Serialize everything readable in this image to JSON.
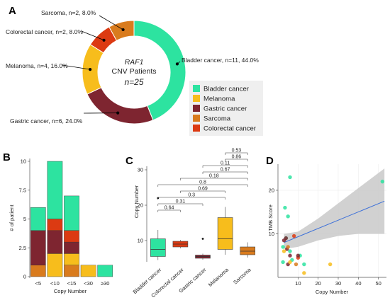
{
  "panels": {
    "a": "A",
    "b": "B",
    "c": "C",
    "d": "D"
  },
  "colors": {
    "bladder": "#2de3a0",
    "melanoma": "#f7bd1c",
    "gastric": "#7e2530",
    "sarcoma": "#d97b1d",
    "colorectal": "#dc3a12",
    "fit_line": "#3b6fd8",
    "ci_band": "#c9c9c9"
  },
  "chart_data": [
    {
      "type": "pie",
      "panel": "A",
      "center_label": {
        "gene": "RAF1",
        "line2": "CNV Patients",
        "total": "n=25"
      },
      "slices": [
        {
          "name": "Bladder cancer",
          "n": 11,
          "percent": 44.0,
          "label": "Bladder cancer, n=11, 44.0%",
          "color": "#2de3a0"
        },
        {
          "name": "Gastric cancer",
          "n": 6,
          "percent": 24.0,
          "label": "Gastric cancer, n=6, 24.0%",
          "color": "#7e2530"
        },
        {
          "name": "Melanoma",
          "n": 4,
          "percent": 16.0,
          "label": "Melanoma, n=4, 16.0%",
          "color": "#f7bd1c"
        },
        {
          "name": "Colorectal cancer",
          "n": 2,
          "percent": 8.0,
          "label": "Colorectal cancer, n=2, 8.0%",
          "color": "#dc3a12"
        },
        {
          "name": "Sarcoma",
          "n": 2,
          "percent": 8.0,
          "label": "Sarcoma, n=2, 8.0%",
          "color": "#d97b1d"
        }
      ],
      "legend": [
        "Bladder cancer",
        "Melanoma",
        "Gastric cancer",
        "Sarcoma",
        "Colorectal cancer"
      ],
      "legend_placement": "right"
    },
    {
      "type": "bar",
      "panel": "B",
      "stacked": true,
      "categories": [
        "<5",
        "<10",
        "<15",
        "<30",
        "≥30"
      ],
      "xlabel": "Copy Number",
      "ylabel": "# of patient",
      "ylim": [
        0,
        10
      ],
      "yticks": [
        0,
        2.5,
        5,
        7.5,
        10
      ],
      "ytick_labels": [
        "0",
        "2.5",
        "5",
        "7.5",
        "10"
      ],
      "series": [
        {
          "name": "Sarcoma",
          "values": [
            1,
            0,
            1,
            0,
            0
          ],
          "color": "#d97b1d"
        },
        {
          "name": "Melanoma",
          "values": [
            0,
            2,
            1,
            1,
            0
          ],
          "color": "#f7bd1c"
        },
        {
          "name": "Gastric cancer",
          "values": [
            3,
            2,
            1,
            0,
            0
          ],
          "color": "#7e2530"
        },
        {
          "name": "Colorectal cancer",
          "values": [
            0,
            1,
            1,
            0,
            0
          ],
          "color": "#dc3a12"
        },
        {
          "name": "Bladder cancer",
          "values": [
            2,
            5,
            3,
            0,
            1
          ],
          "color": "#2de3a0"
        }
      ]
    },
    {
      "type": "box",
      "panel": "C",
      "ylabel": "Copy Number",
      "ylim": [
        3,
        33
      ],
      "yticks": [
        10,
        20,
        30
      ],
      "categories": [
        "Bladder cancer",
        "Colorectal cancer",
        "Gastric cancer",
        "Melanoma",
        "Sarcoma"
      ],
      "boxes": [
        {
          "name": "Bladder cancer",
          "color": "#2de3a0",
          "whisker_low": 4.5,
          "q1": 5.5,
          "median": 7.5,
          "q3": 10.5,
          "whisker_high": 13,
          "outliers": [
            22
          ]
        },
        {
          "name": "Colorectal cancer",
          "color": "#dc3a12",
          "whisker_low": 7.8,
          "q1": 8.2,
          "median": 9,
          "q3": 9.8,
          "whisker_high": 10.2,
          "outliers": []
        },
        {
          "name": "Gastric cancer",
          "color": "#7e2530",
          "whisker_low": 4.6,
          "q1": 5,
          "median": 5.5,
          "q3": 5.9,
          "whisker_high": 6.3,
          "outliers": [
            10.5
          ]
        },
        {
          "name": "Melanoma",
          "color": "#f7bd1c",
          "whisker_low": 6,
          "q1": 7.5,
          "median": 10.5,
          "q3": 16.5,
          "whisker_high": 19.5,
          "outliers": []
        },
        {
          "name": "Sarcoma",
          "color": "#d97b1d",
          "whisker_low": 5.2,
          "q1": 6,
          "median": 7,
          "q3": 8.2,
          "whisker_high": 9.5,
          "outliers": []
        }
      ],
      "comparisons": [
        {
          "from": 0,
          "to": 1,
          "p": "0.64"
        },
        {
          "from": 0,
          "to": 2,
          "p": "0.31"
        },
        {
          "from": 0,
          "to": 3,
          "p": "0.3"
        },
        {
          "from": 1,
          "to": 3,
          "p": "0.69"
        },
        {
          "from": 0,
          "to": 4,
          "p": "0.8"
        },
        {
          "from": 1,
          "to": 4,
          "p": "0.18"
        },
        {
          "from": 2,
          "to": 4,
          "p": "0.67"
        },
        {
          "from": 2,
          "to": 4,
          "p": "0.11"
        },
        {
          "from": 3,
          "to": 4,
          "p": "0.86"
        },
        {
          "from": 3,
          "to": 4,
          "p": "0.53"
        }
      ]
    },
    {
      "type": "scatter",
      "panel": "D",
      "xlabel": "Copy Number",
      "ylabel": "TMB Score",
      "xlim": [
        0,
        54
      ],
      "ylim": [
        0,
        26
      ],
      "xticks": [
        10,
        20,
        30,
        40,
        50
      ],
      "yticks": [
        10,
        20
      ],
      "grid": true,
      "fit": {
        "x0": 3,
        "y0": 8,
        "x1": 53,
        "y1": 17.5
      },
      "ci_band": {
        "top": [
          [
            3,
            10
          ],
          [
            10,
            10.5
          ],
          [
            20,
            13.5
          ],
          [
            30,
            17
          ],
          [
            40,
            20.5
          ],
          [
            53,
            25
          ]
        ],
        "bottom": [
          [
            3,
            6.5
          ],
          [
            10,
            7
          ],
          [
            20,
            8.5
          ],
          [
            30,
            9.5
          ],
          [
            40,
            10
          ],
          [
            53,
            10
          ]
        ]
      },
      "points": [
        {
          "x": 3.5,
          "y": 16,
          "cancer": "Bladder cancer"
        },
        {
          "x": 6,
          "y": 23,
          "cancer": "Bladder cancer"
        },
        {
          "x": 5,
          "y": 14,
          "cancer": "Bladder cancer"
        },
        {
          "x": 4,
          "y": 9,
          "cancer": "Bladder cancer"
        },
        {
          "x": 11,
          "y": 5,
          "cancer": "Bladder cancer"
        },
        {
          "x": 13,
          "y": 3,
          "cancer": "Bladder cancer"
        },
        {
          "x": 52,
          "y": 22,
          "cancer": "Bladder cancer"
        },
        {
          "x": 2.5,
          "y": 7,
          "cancer": "Bladder cancer"
        },
        {
          "x": 7,
          "y": 4,
          "cancer": "Bladder cancer"
        },
        {
          "x": 2.5,
          "y": 3.5,
          "cancer": "Bladder cancer"
        },
        {
          "x": 6,
          "y": 6,
          "cancer": "Bladder cancer"
        },
        {
          "x": 8,
          "y": 9.5,
          "cancer": "Colorectal cancer"
        },
        {
          "x": 10,
          "y": 4.5,
          "cancer": "Colorectal cancer"
        },
        {
          "x": 4,
          "y": 9,
          "cancer": "Gastric cancer"
        },
        {
          "x": 6,
          "y": 5,
          "cancer": "Gastric cancer"
        },
        {
          "x": 4.5,
          "y": 6.5,
          "cancer": "Gastric cancer"
        },
        {
          "x": 3,
          "y": 8.5,
          "cancer": "Gastric cancer"
        },
        {
          "x": 5,
          "y": 3,
          "cancer": "Gastric cancer"
        },
        {
          "x": 10,
          "y": 5,
          "cancer": "Gastric cancer"
        },
        {
          "x": 3,
          "y": 6,
          "cancer": "Melanoma"
        },
        {
          "x": 6,
          "y": 3.5,
          "cancer": "Melanoma"
        },
        {
          "x": 13,
          "y": 1,
          "cancer": "Melanoma"
        },
        {
          "x": 26,
          "y": 3,
          "cancer": "Melanoma"
        },
        {
          "x": 5,
          "y": 7,
          "cancer": "Sarcoma"
        },
        {
          "x": 9,
          "y": 3,
          "cancer": "Sarcoma"
        }
      ]
    }
  ]
}
